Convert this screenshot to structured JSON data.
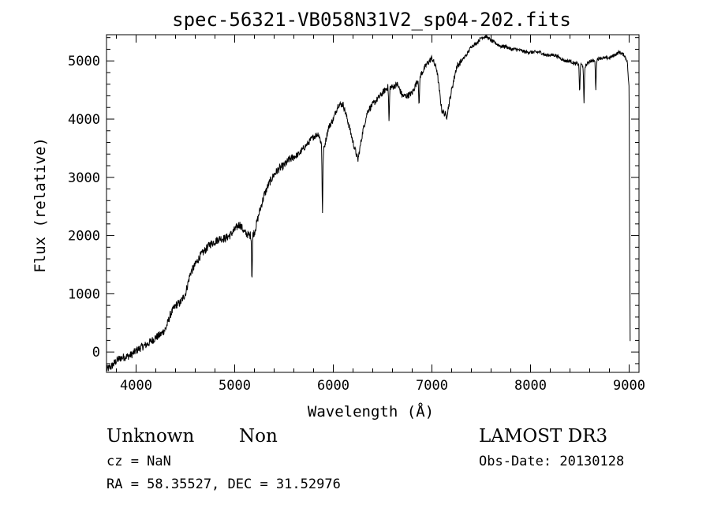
{
  "chart_data": {
    "type": "line",
    "title": "spec-56321-VB058N31V2_sp04-202.fits",
    "xlabel": "Wavelength (Å)",
    "ylabel": "Flux (relative)",
    "xlim": [
      3700,
      9100
    ],
    "ylim": [
      -350,
      5450
    ],
    "x_ticks": [
      4000,
      5000,
      6000,
      7000,
      8000,
      9000
    ],
    "y_ticks": [
      0,
      1000,
      2000,
      3000,
      4000,
      5000
    ],
    "x_tick_labels": [
      "4000",
      "5000",
      "6000",
      "7000",
      "8000",
      "9000"
    ],
    "y_tick_labels": [
      "0",
      "1000",
      "2000",
      "3000",
      "4000",
      "5000"
    ],
    "series": [
      {
        "name": "spectrum",
        "anchors": [
          [
            3700,
            -300
          ],
          [
            3750,
            -250
          ],
          [
            3800,
            -150
          ],
          [
            3850,
            -100
          ],
          [
            3900,
            -80
          ],
          [
            3950,
            -50
          ],
          [
            4000,
            20
          ],
          [
            4050,
            80
          ],
          [
            4100,
            120
          ],
          [
            4150,
            180
          ],
          [
            4200,
            250
          ],
          [
            4250,
            300
          ],
          [
            4300,
            400
          ],
          [
            4350,
            650
          ],
          [
            4400,
            800
          ],
          [
            4450,
            850
          ],
          [
            4500,
            1000
          ],
          [
            4550,
            1350
          ],
          [
            4600,
            1500
          ],
          [
            4650,
            1650
          ],
          [
            4700,
            1750
          ],
          [
            4750,
            1850
          ],
          [
            4800,
            1900
          ],
          [
            4850,
            1950
          ],
          [
            4900,
            1950
          ],
          [
            4950,
            2000
          ],
          [
            5000,
            2100
          ],
          [
            5050,
            2200
          ],
          [
            5100,
            2050
          ],
          [
            5150,
            2000
          ],
          [
            5200,
            2050
          ],
          [
            5250,
            2400
          ],
          [
            5300,
            2700
          ],
          [
            5350,
            2900
          ],
          [
            5400,
            3050
          ],
          [
            5450,
            3150
          ],
          [
            5500,
            3200
          ],
          [
            5550,
            3300
          ],
          [
            5600,
            3350
          ],
          [
            5650,
            3400
          ],
          [
            5700,
            3500
          ],
          [
            5750,
            3600
          ],
          [
            5800,
            3700
          ],
          [
            5850,
            3750
          ],
          [
            5900,
            3450
          ],
          [
            5950,
            3850
          ],
          [
            6000,
            4000
          ],
          [
            6050,
            4250
          ],
          [
            6100,
            4250
          ],
          [
            6150,
            3950
          ],
          [
            6200,
            3600
          ],
          [
            6250,
            3300
          ],
          [
            6300,
            3800
          ],
          [
            6350,
            4150
          ],
          [
            6400,
            4250
          ],
          [
            6450,
            4350
          ],
          [
            6500,
            4450
          ],
          [
            6550,
            4550
          ],
          [
            6600,
            4550
          ],
          [
            6650,
            4600
          ],
          [
            6700,
            4400
          ],
          [
            6750,
            4400
          ],
          [
            6800,
            4450
          ],
          [
            6850,
            4650
          ],
          [
            6900,
            4800
          ],
          [
            6950,
            4950
          ],
          [
            7000,
            5050
          ],
          [
            7050,
            4850
          ],
          [
            7100,
            4150
          ],
          [
            7150,
            4050
          ],
          [
            7200,
            4500
          ],
          [
            7250,
            4900
          ],
          [
            7300,
            5000
          ],
          [
            7350,
            5100
          ],
          [
            7400,
            5250
          ],
          [
            7450,
            5300
          ],
          [
            7500,
            5400
          ],
          [
            7550,
            5420
          ],
          [
            7600,
            5350
          ],
          [
            7650,
            5300
          ],
          [
            7700,
            5250
          ],
          [
            7750,
            5250
          ],
          [
            7800,
            5200
          ],
          [
            7850,
            5200
          ],
          [
            7900,
            5180
          ],
          [
            7950,
            5150
          ],
          [
            8000,
            5150
          ],
          [
            8050,
            5150
          ],
          [
            8100,
            5150
          ],
          [
            8150,
            5100
          ],
          [
            8200,
            5100
          ],
          [
            8250,
            5100
          ],
          [
            8300,
            5050
          ],
          [
            8350,
            5000
          ],
          [
            8400,
            5000
          ],
          [
            8450,
            4950
          ],
          [
            8500,
            4950
          ],
          [
            8550,
            4900
          ],
          [
            8600,
            5000
          ],
          [
            8650,
            5000
          ],
          [
            8700,
            5050
          ],
          [
            8750,
            5050
          ],
          [
            8800,
            5050
          ],
          [
            8850,
            5100
          ],
          [
            8900,
            5150
          ],
          [
            8950,
            5100
          ],
          [
            8980,
            5000
          ],
          [
            9000,
            4500
          ],
          [
            9010,
            200
          ]
        ],
        "absorption_lines": [
          {
            "x": 5175,
            "depth": 750
          },
          {
            "x": 5890,
            "depth": 1100
          },
          {
            "x": 6565,
            "depth": 600
          },
          {
            "x": 6870,
            "depth": 500
          },
          {
            "x": 8498,
            "depth": 500
          },
          {
            "x": 8542,
            "depth": 650
          },
          {
            "x": 8662,
            "depth": 500
          }
        ]
      }
    ]
  },
  "info": {
    "object_name": "Unknown",
    "object_class": "Non",
    "survey": "LAMOST DR3",
    "cz": "cz = NaN",
    "obs_date": "Obs-Date: 20130128",
    "coords": "RA =  58.35527, DEC =  31.52976"
  }
}
